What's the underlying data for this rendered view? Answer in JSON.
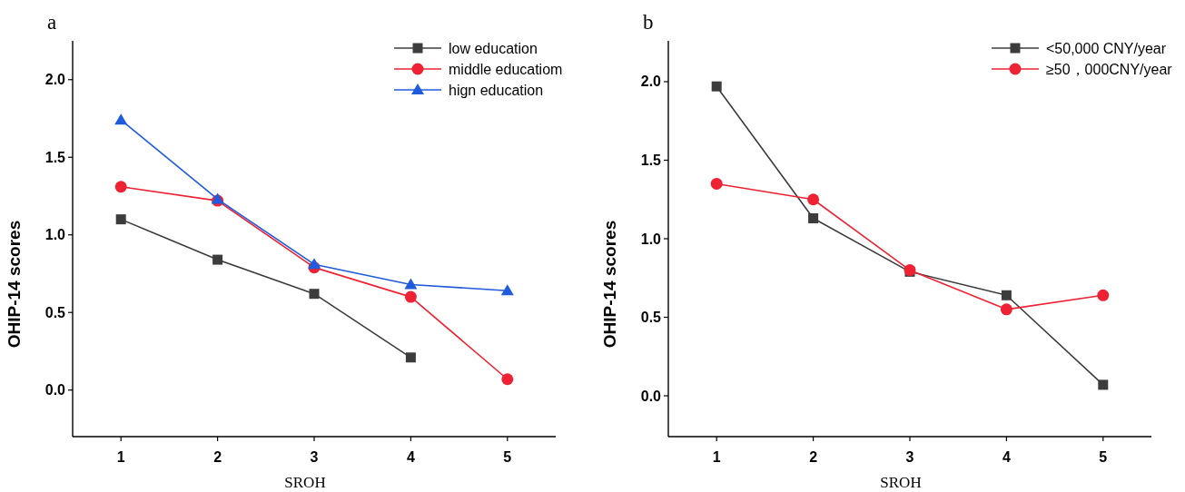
{
  "chart_data": [
    {
      "type": "line",
      "title": "a",
      "xlabel": "SROH",
      "ylabel": "OHIP-14 scores",
      "x": [
        1,
        2,
        3,
        4,
        5
      ],
      "xlim": [
        0.5,
        5.5
      ],
      "xticks": [
        1,
        2,
        3,
        4,
        5
      ],
      "ylim": [
        -0.3,
        2.25
      ],
      "yticks": [
        {
          "value": 0,
          "label": "0.0"
        },
        {
          "value": 0.5,
          "label": "0.5"
        },
        {
          "value": 1,
          "label": "1.0"
        },
        {
          "value": 1.5,
          "label": "1.5"
        },
        {
          "value": 2,
          "label": "2.0"
        }
      ],
      "grid": false,
      "legend": "top right",
      "series": [
        {
          "name": "low education",
          "color": "#3c3c3c",
          "marker": "square",
          "values": [
            1.1,
            0.84,
            0.62,
            0.21,
            null
          ]
        },
        {
          "name": "middle educatiom",
          "color": "#ee2233",
          "marker": "circle",
          "values": [
            1.31,
            1.22,
            0.79,
            0.6,
            0.07
          ]
        },
        {
          "name": "hign education",
          "color": "#1f5bdc",
          "marker": "triangle",
          "values": [
            1.74,
            1.23,
            0.81,
            0.68,
            0.64
          ]
        }
      ]
    },
    {
      "type": "line",
      "title": "b",
      "xlabel": "SROH",
      "ylabel": "OHIP-14 scores",
      "x": [
        1,
        2,
        3,
        4,
        5
      ],
      "xlim": [
        0.5,
        5.5
      ],
      "xticks": [
        1,
        2,
        3,
        4,
        5
      ],
      "ylim": [
        -0.26,
        2.26
      ],
      "yticks": [
        {
          "value": 0,
          "label": "0.0"
        },
        {
          "value": 0.5,
          "label": "0.5"
        },
        {
          "value": 1,
          "label": "1.0"
        },
        {
          "value": 1.5,
          "label": "1.5"
        },
        {
          "value": 2,
          "label": "2.0"
        }
      ],
      "grid": false,
      "legend": "top right",
      "series": [
        {
          "name": "<50,000 CNY/year",
          "color": "#3c3c3c",
          "marker": "square",
          "values": [
            1.97,
            1.13,
            0.79,
            0.64,
            0.07
          ]
        },
        {
          "name": "≥50，000CNY/year",
          "color": "#ee2233",
          "marker": "circle",
          "values": [
            1.35,
            1.25,
            0.8,
            0.55,
            0.64
          ]
        }
      ]
    }
  ]
}
